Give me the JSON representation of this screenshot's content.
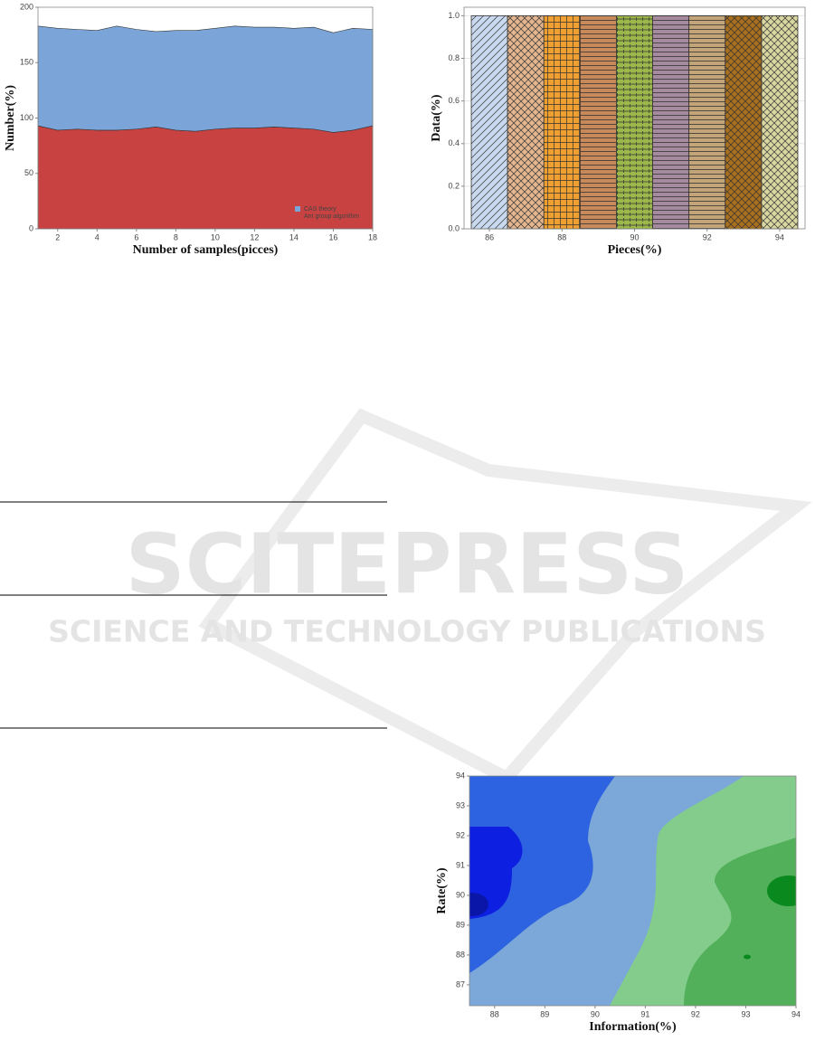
{
  "watermark": {
    "title": "SCITEPRESS",
    "subtitle": "SCIENCE AND TECHNOLOGY PUBLICATIONS"
  },
  "chart_data": [
    {
      "type": "area",
      "x": [
        1,
        2,
        3,
        4,
        5,
        6,
        7,
        8,
        9,
        10,
        11,
        12,
        13,
        14,
        15,
        16,
        17,
        18
      ],
      "series": [
        {
          "name": "Ant group algorithm",
          "color": "#c84242",
          "values": [
            93,
            89,
            90,
            89,
            89,
            90,
            92,
            89,
            88,
            90,
            91,
            91,
            92,
            91,
            90,
            87,
            89,
            93
          ]
        },
        {
          "name": "CAS theory",
          "color": "#7ba5d8",
          "values": [
            90,
            92,
            90,
            90,
            94,
            90,
            86,
            90,
            91,
            91,
            92,
            91,
            90,
            90,
            92,
            90,
            92,
            87
          ]
        }
      ],
      "xlim": [
        1,
        18
      ],
      "xticks": [
        2,
        4,
        6,
        8,
        10,
        12,
        14,
        16,
        18
      ],
      "ylim": [
        0,
        200
      ],
      "yticks": [
        0,
        50,
        100,
        150,
        200
      ],
      "xlabel": "Number of samples(picces)",
      "ylabel": "Number(%)",
      "legend": "lower right",
      "grid": false
    },
    {
      "type": "bar",
      "x": [
        86,
        87,
        88,
        89,
        90,
        91,
        92,
        93,
        94
      ],
      "values": [
        1,
        1,
        1,
        1,
        1,
        1,
        1,
        1,
        1
      ],
      "colors": [
        "#c9d9ef",
        "#e3b68f",
        "#f0a030",
        "#c88a5a",
        "#9cb84a",
        "#a58aa0",
        "#c4a57a",
        "#a86f1e",
        "#d9d6a0"
      ],
      "hatches": [
        "diag",
        "cross",
        "grid",
        "horiz",
        "plus",
        "horiz",
        "horiz",
        "cross",
        "cross"
      ],
      "xlim": [
        85.3,
        94.7
      ],
      "xticks": [
        86,
        88,
        90,
        92,
        94
      ],
      "ylim": [
        0,
        1.04
      ],
      "yticks": [
        {
          "value": 0,
          "label": "0.0"
        },
        0.2,
        0.4,
        0.6,
        0.8,
        {
          "value": 1,
          "label": "1.0"
        }
      ],
      "xlabel": "Pieces(%)",
      "ylabel": "Data(%)",
      "grid": true
    },
    {
      "type": "contour",
      "xlim": [
        87.5,
        94
      ],
      "xticks": [
        88,
        89,
        90,
        91,
        92,
        93,
        94
      ],
      "ylim": [
        86.3,
        94
      ],
      "yticks": [
        87,
        88,
        89,
        90,
        91,
        92,
        93,
        94
      ],
      "xlabel": "Information(%)",
      "ylabel": "Rate(%)",
      "grid": false
    }
  ]
}
